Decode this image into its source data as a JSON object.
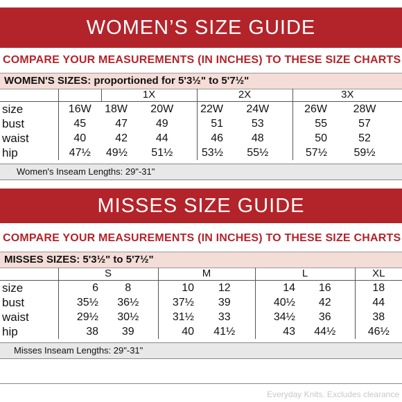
{
  "women": {
    "title": "WOMEN’S SIZE GUIDE",
    "subtitle": "COMPARE YOUR MEASUREMENTS (IN INCHES) TO THESE SIZE CHARTS",
    "sizes_heading": "WOMEN'S SIZES: proportioned for 5'3½\" to 5'7½\"",
    "groups": [
      "",
      "1X",
      "2X",
      "3X"
    ],
    "rows": [
      {
        "label": "size",
        "values": [
          "16W",
          "18W",
          "20W",
          "22W",
          "24W",
          "26W",
          "28W"
        ]
      },
      {
        "label": "bust",
        "values": [
          "45",
          "47",
          "49",
          "51",
          "53",
          "55",
          "57"
        ]
      },
      {
        "label": "waist",
        "values": [
          "40",
          "42",
          "44",
          "46",
          "48",
          "50",
          "52"
        ]
      },
      {
        "label": "hip",
        "values": [
          "47½",
          "49½",
          "51½",
          "53½",
          "55½",
          "57½",
          "59½"
        ]
      }
    ],
    "inseam": "Women's Inseam Lengths: 29\"-31\""
  },
  "misses": {
    "title": "MISSES SIZE GUIDE",
    "subtitle": "COMPARE YOUR MEASUREMENTS (IN INCHES) TO THESE SIZE CHARTS",
    "sizes_heading": "MISSES SIZES: 5'3½\" to 5'7½\"",
    "groups": [
      "S",
      "M",
      "L",
      "XL"
    ],
    "rows": [
      {
        "label": "size",
        "values": [
          "6",
          "8",
          "10",
          "12",
          "14",
          "16",
          "18"
        ]
      },
      {
        "label": "bust",
        "values": [
          "35½",
          "36½",
          "37½",
          "39",
          "40½",
          "42",
          "44"
        ]
      },
      {
        "label": "waist",
        "values": [
          "29½",
          "30½",
          "31½",
          "33",
          "34½",
          "36",
          "38"
        ]
      },
      {
        "label": "hip",
        "values": [
          "38",
          "39",
          "40",
          "41½",
          "43",
          "44½",
          "46½"
        ]
      }
    ],
    "inseam": "Misses Inseam Lengths: 29\"-31\""
  },
  "footer": "Everyday Knits. Excludes clearance"
}
